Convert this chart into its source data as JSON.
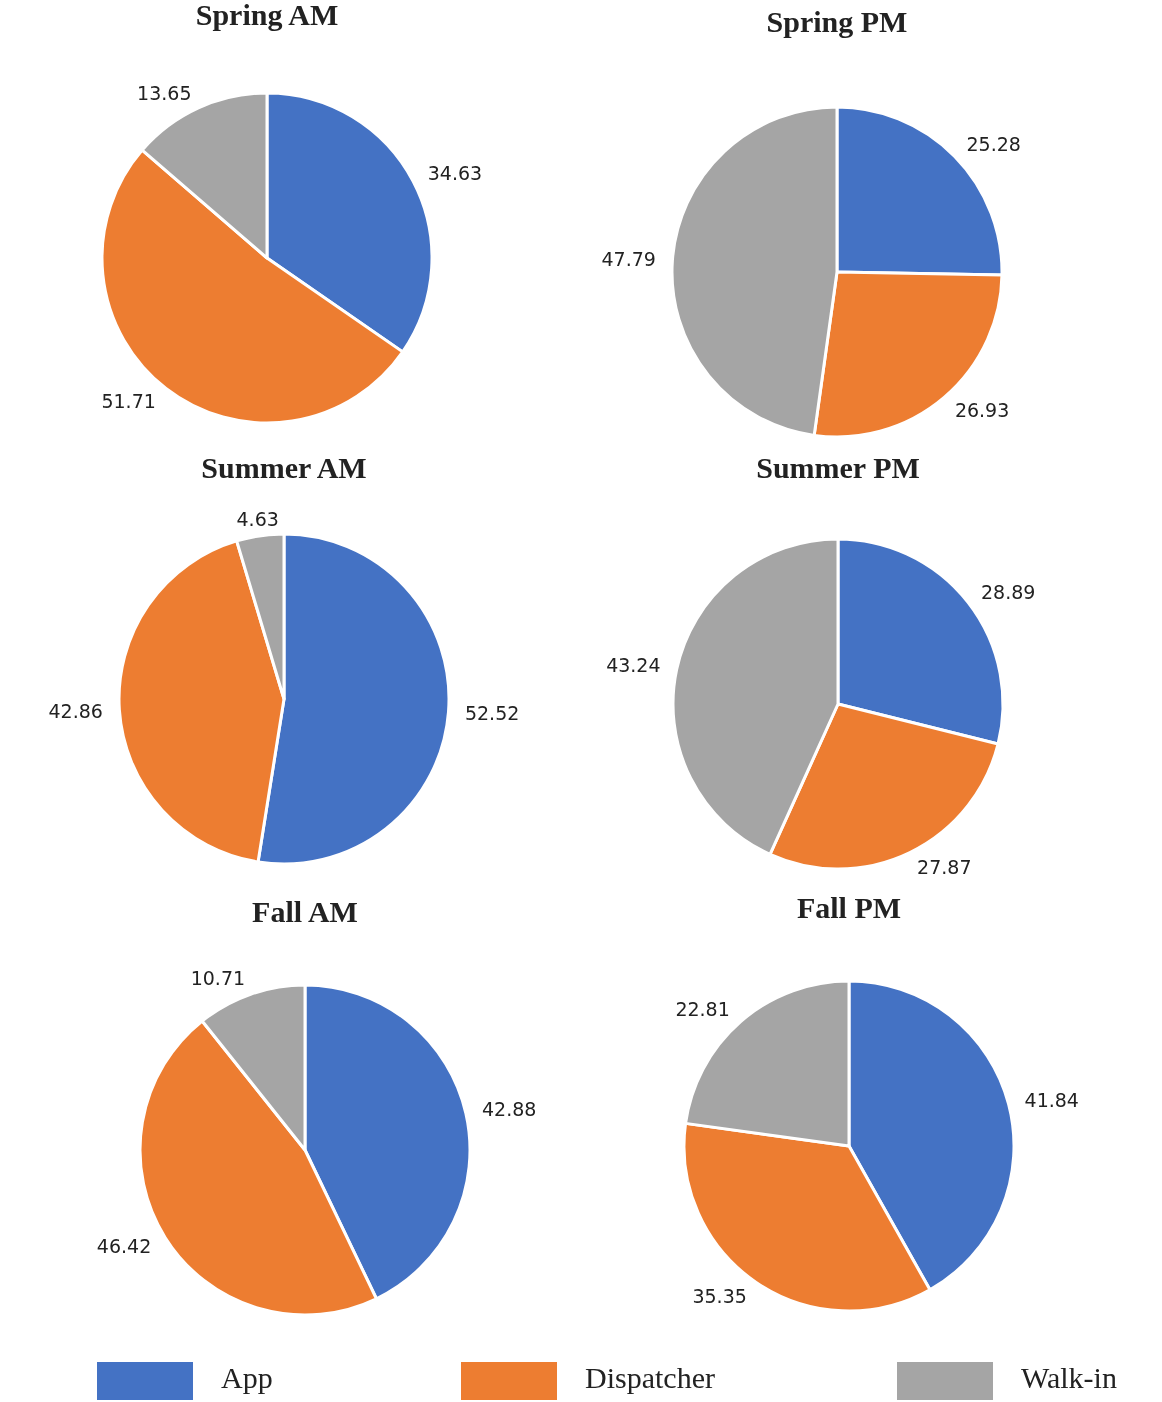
{
  "chart_data": [
    {
      "type": "pie",
      "title": "Spring AM",
      "categories": [
        "App",
        "Dispatcher",
        "Walk-in"
      ],
      "values": [
        34.63,
        51.71,
        13.65
      ],
      "colors": [
        "#4472c4",
        "#ed7d31",
        "#a5a5a5"
      ],
      "data_labels": true,
      "legend": "bottom"
    },
    {
      "type": "pie",
      "title": "Spring PM",
      "categories": [
        null,
        null,
        null
      ],
      "values": [
        25.28,
        26.93,
        47.79
      ],
      "colors": [
        "#4472c4",
        "#ed7d31",
        "#a5a5a5"
      ],
      "data_labels": true
    },
    {
      "type": "pie",
      "title": "Summer AM",
      "categories": [
        null,
        null,
        null
      ],
      "values": [
        52.52,
        42.86,
        4.63
      ],
      "colors": [
        "#4472c4",
        "#ed7d31",
        "#a5a5a5"
      ],
      "data_labels": true
    },
    {
      "type": "pie",
      "title": "Summer PM",
      "categories": [
        null,
        null,
        null
      ],
      "values": [
        28.89,
        27.87,
        43.24
      ],
      "colors": [
        "#4472c4",
        "#ed7d31",
        "#a5a5a5"
      ],
      "data_labels": true
    },
    {
      "type": "pie",
      "title": "Fall AM",
      "categories": [
        null,
        null,
        null
      ],
      "values": [
        42.88,
        46.42,
        10.71
      ],
      "colors": [
        "#4472c4",
        "#ed7d31",
        "#a5a5a5"
      ],
      "data_labels": true
    },
    {
      "type": "pie",
      "title": "Fall PM",
      "categories": [
        null,
        null,
        null
      ],
      "values": [
        41.84,
        35.35,
        22.81
      ],
      "colors": [
        "#4472c4",
        "#ed7d31",
        "#a5a5a5"
      ],
      "data_labels": true
    }
  ]
}
